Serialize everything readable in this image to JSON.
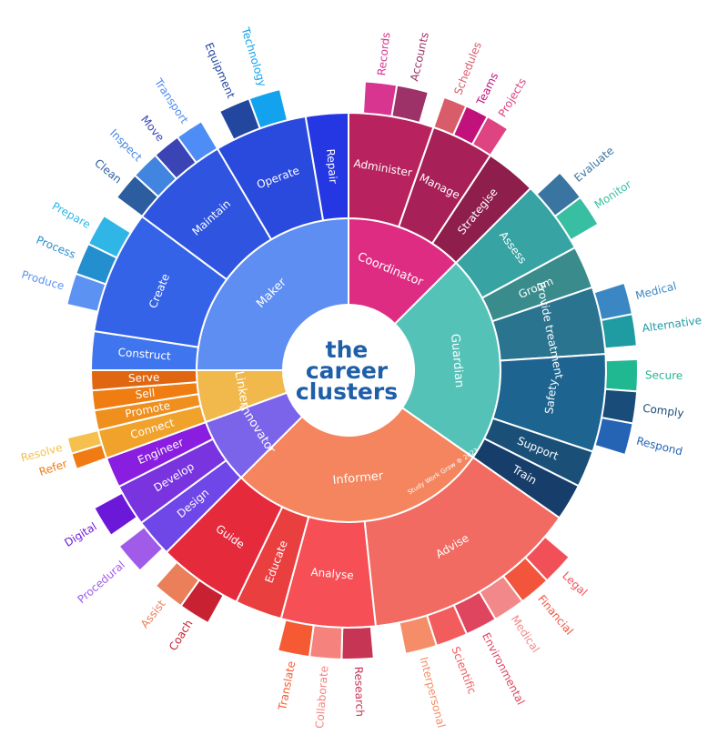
{
  "title": [
    "the",
    "career",
    "clusters"
  ],
  "credit": "Study Work Grow ® 2023",
  "clusters": [
    {
      "name": "Maker",
      "color": "#5f8ef2",
      "roles": [
        {
          "name": "Construct",
          "color": "#3f75ee",
          "tasks": []
        },
        {
          "name": "Create",
          "color": "#3563e8",
          "tasks": [
            {
              "name": "Produce",
              "color": "#5c93f3"
            },
            {
              "name": "Process",
              "color": "#238fcf"
            },
            {
              "name": "Prepare",
              "color": "#2fb6e6"
            }
          ]
        },
        {
          "name": "Maintain",
          "color": "#2f55e0",
          "tasks": [
            {
              "name": "Clean",
              "color": "#2c5d9e"
            },
            {
              "name": "Inspect",
              "color": "#4285e0"
            },
            {
              "name": "Move",
              "color": "#3b44b5"
            },
            {
              "name": "Transport",
              "color": "#4d8df5"
            }
          ]
        },
        {
          "name": "Operate",
          "color": "#2a49dd",
          "tasks": [
            {
              "name": "Equipment",
              "color": "#23479f"
            },
            {
              "name": "Technology",
              "color": "#13a2ee"
            }
          ]
        },
        {
          "name": "Repair",
          "color": "#2437e3",
          "tasks": []
        }
      ]
    },
    {
      "name": "Coordinator",
      "color": "#de2c82",
      "roles": [
        {
          "name": "Administer",
          "color": "#b8225e",
          "tasks": [
            {
              "name": "Records",
              "color": "#d7358f"
            },
            {
              "name": "Accounts",
              "color": "#9c3268"
            }
          ]
        },
        {
          "name": "Manage",
          "color": "#a72057",
          "tasks": [
            {
              "name": "Schedules",
              "color": "#d95c6b"
            },
            {
              "name": "Teams",
              "color": "#c0127a"
            },
            {
              "name": "Projects",
              "color": "#de4382"
            }
          ]
        },
        {
          "name": "Strategise",
          "color": "#8e1e4b",
          "tasks": []
        }
      ]
    },
    {
      "name": "Guardian",
      "color": "#55c2b8",
      "roles": [
        {
          "name": "Assess",
          "color": "#37a3a3",
          "tasks": [
            {
              "name": "Evaluate",
              "color": "#3a75a2"
            },
            {
              "name": "Monitor",
              "color": "#38bfa2"
            }
          ]
        },
        {
          "name": "Groom",
          "color": "#3a8c8c",
          "tasks": []
        },
        {
          "name": "Provide treatment",
          "color": "#2b7490",
          "tasks": [
            {
              "name": "Medical",
              "color": "#3b87c4"
            },
            {
              "name": "Alternative",
              "color": "#1f9ba2"
            }
          ]
        },
        {
          "name": "Safety",
          "color": "#1d6590",
          "tasks": [
            {
              "name": "Secure",
              "color": "#20b890"
            },
            {
              "name": "Comply",
              "color": "#1a4c7a"
            },
            {
              "name": "Respond",
              "color": "#2563b5"
            }
          ]
        },
        {
          "name": "Support",
          "color": "#1a5078",
          "tasks": []
        },
        {
          "name": "Train",
          "color": "#173e6b",
          "tasks": []
        }
      ]
    },
    {
      "name": "Informer",
      "color": "#f4855e",
      "roles": [
        {
          "name": "Advise",
          "color": "#f26b62",
          "tasks": [
            {
              "name": "Legal",
              "color": "#f25058"
            },
            {
              "name": "Financial",
              "color": "#f2553c"
            },
            {
              "name": "Medical",
              "color": "#f3888a"
            },
            {
              "name": "Environmental",
              "color": "#e04560"
            },
            {
              "name": "Scientific",
              "color": "#f25c5c"
            },
            {
              "name": "Interpersonal",
              "color": "#f58e68"
            }
          ]
        },
        {
          "name": "Analyse",
          "color": "#f64f55",
          "tasks": [
            {
              "name": "Research",
              "color": "#c73555"
            },
            {
              "name": "Collaborate",
              "color": "#f6827e"
            },
            {
              "name": "Translate",
              "color": "#f55a32"
            }
          ]
        },
        {
          "name": "Educate",
          "color": "#ea3f3f",
          "tasks": []
        },
        {
          "name": "Guide",
          "color": "#e52a3c",
          "tasks": [
            {
              "name": "Coach",
              "color": "#c82232"
            },
            {
              "name": "Assist",
              "color": "#ea7f5a"
            }
          ]
        }
      ]
    },
    {
      "name": "Innovator",
      "color": "#7b63ea",
      "roles": [
        {
          "name": "Design",
          "color": "#6f46e8",
          "tasks": [
            {
              "name": "Procedural",
              "color": "#a05ce8"
            }
          ]
        },
        {
          "name": "Develop",
          "color": "#7934e0",
          "tasks": [
            {
              "name": "Digital",
              "color": "#6c18d8"
            }
          ]
        },
        {
          "name": "Engineer",
          "color": "#8a1ee0",
          "tasks": []
        }
      ]
    },
    {
      "name": "Linker",
      "color": "#f1b84b",
      "roles": [
        {
          "name": "Connect",
          "color": "#f0a22a",
          "tasks": [
            {
              "name": "Refer",
              "color": "#f07b12"
            },
            {
              "name": "Resolve",
              "color": "#f5c04d"
            }
          ]
        },
        {
          "name": "Promote",
          "color": "#ef8f1d",
          "tasks": []
        },
        {
          "name": "Sell",
          "color": "#ef7d12",
          "tasks": []
        },
        {
          "name": "Serve",
          "color": "#e06612",
          "tasks": []
        }
      ]
    }
  ]
}
